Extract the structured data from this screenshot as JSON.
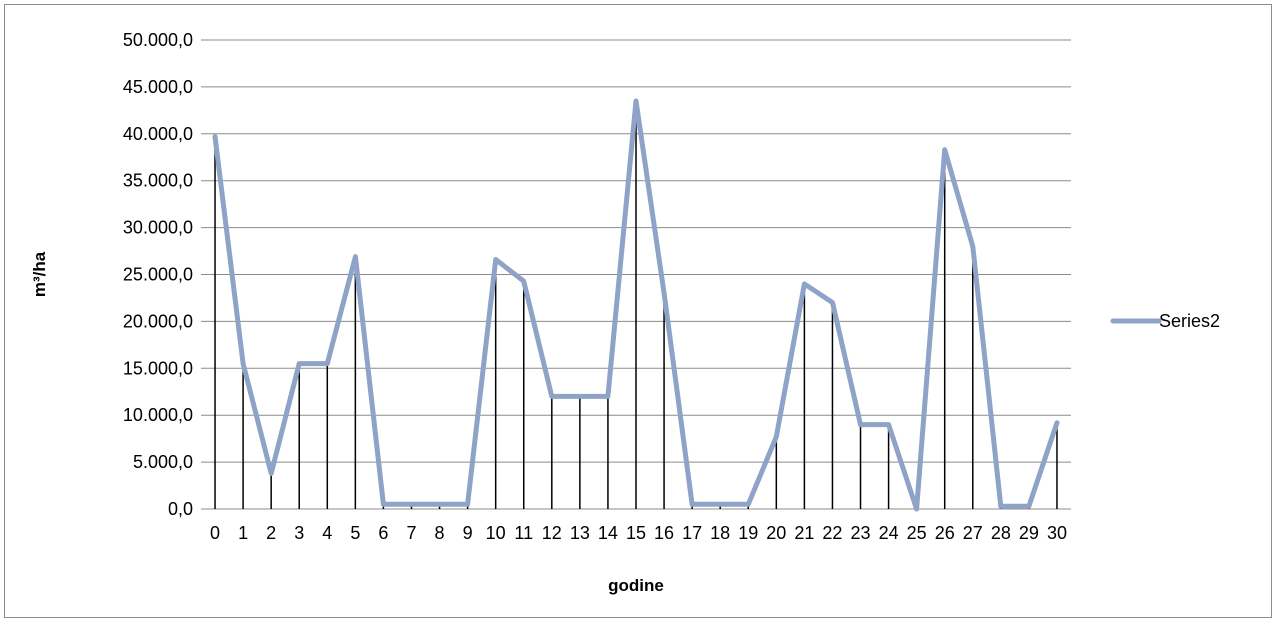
{
  "chart_data": {
    "type": "line",
    "title": "",
    "xlabel": "godine",
    "ylabel": "m³/ha",
    "ylim": [
      0,
      50000
    ],
    "y_ticks": [
      0,
      5000,
      10000,
      15000,
      20000,
      25000,
      30000,
      35000,
      40000,
      45000,
      50000
    ],
    "y_tick_labels": [
      "0,0",
      "5.000,0",
      "10.000,0",
      "15.000,0",
      "20.000,0",
      "25.000,0",
      "30.000,0",
      "35.000,0",
      "40.000,0",
      "45.000,0",
      "50.000,0"
    ],
    "categories": [
      "0",
      "1",
      "2",
      "3",
      "4",
      "5",
      "6",
      "7",
      "8",
      "9",
      "10",
      "11",
      "12",
      "13",
      "14",
      "15",
      "16",
      "17",
      "18",
      "19",
      "20",
      "21",
      "22",
      "23",
      "24",
      "25",
      "26",
      "27",
      "28",
      "29",
      "30"
    ],
    "grid": "horizontal",
    "drop_lines": true,
    "legend_position": "right",
    "series": [
      {
        "name": "Series2",
        "color": "#8EA3C7",
        "values": [
          39700,
          15500,
          3800,
          15500,
          15500,
          26900,
          500,
          500,
          500,
          500,
          26600,
          24300,
          12000,
          12000,
          12000,
          43500,
          23000,
          500,
          500,
          500,
          7700,
          24000,
          22000,
          9000,
          9000,
          0,
          38300,
          28000,
          300,
          300,
          9200
        ]
      }
    ]
  }
}
